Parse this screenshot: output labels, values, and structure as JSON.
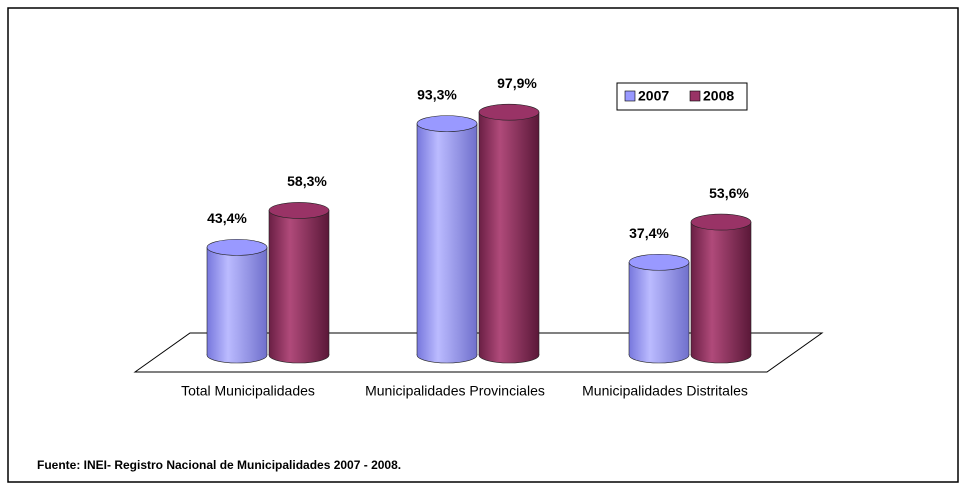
{
  "chart_data": {
    "type": "bar",
    "categories": [
      "Total Municipalidades",
      "Municipalidades Provinciales",
      "Municipalidades Distritales"
    ],
    "series": [
      {
        "name": "2007",
        "color": "#9999ff",
        "values": [
          43.4,
          93.3,
          37.4
        ],
        "value_labels": [
          "43,4%",
          "93,3%",
          "37,4%"
        ]
      },
      {
        "name": "2008",
        "color": "#993366",
        "values": [
          58.3,
          97.9,
          53.6
        ],
        "value_labels": [
          "58,3%",
          "97,9%",
          "53,6%"
        ]
      }
    ],
    "source": "Fuente: INEI- Registro Nacional de Municipalidades 2007 - 2008."
  }
}
